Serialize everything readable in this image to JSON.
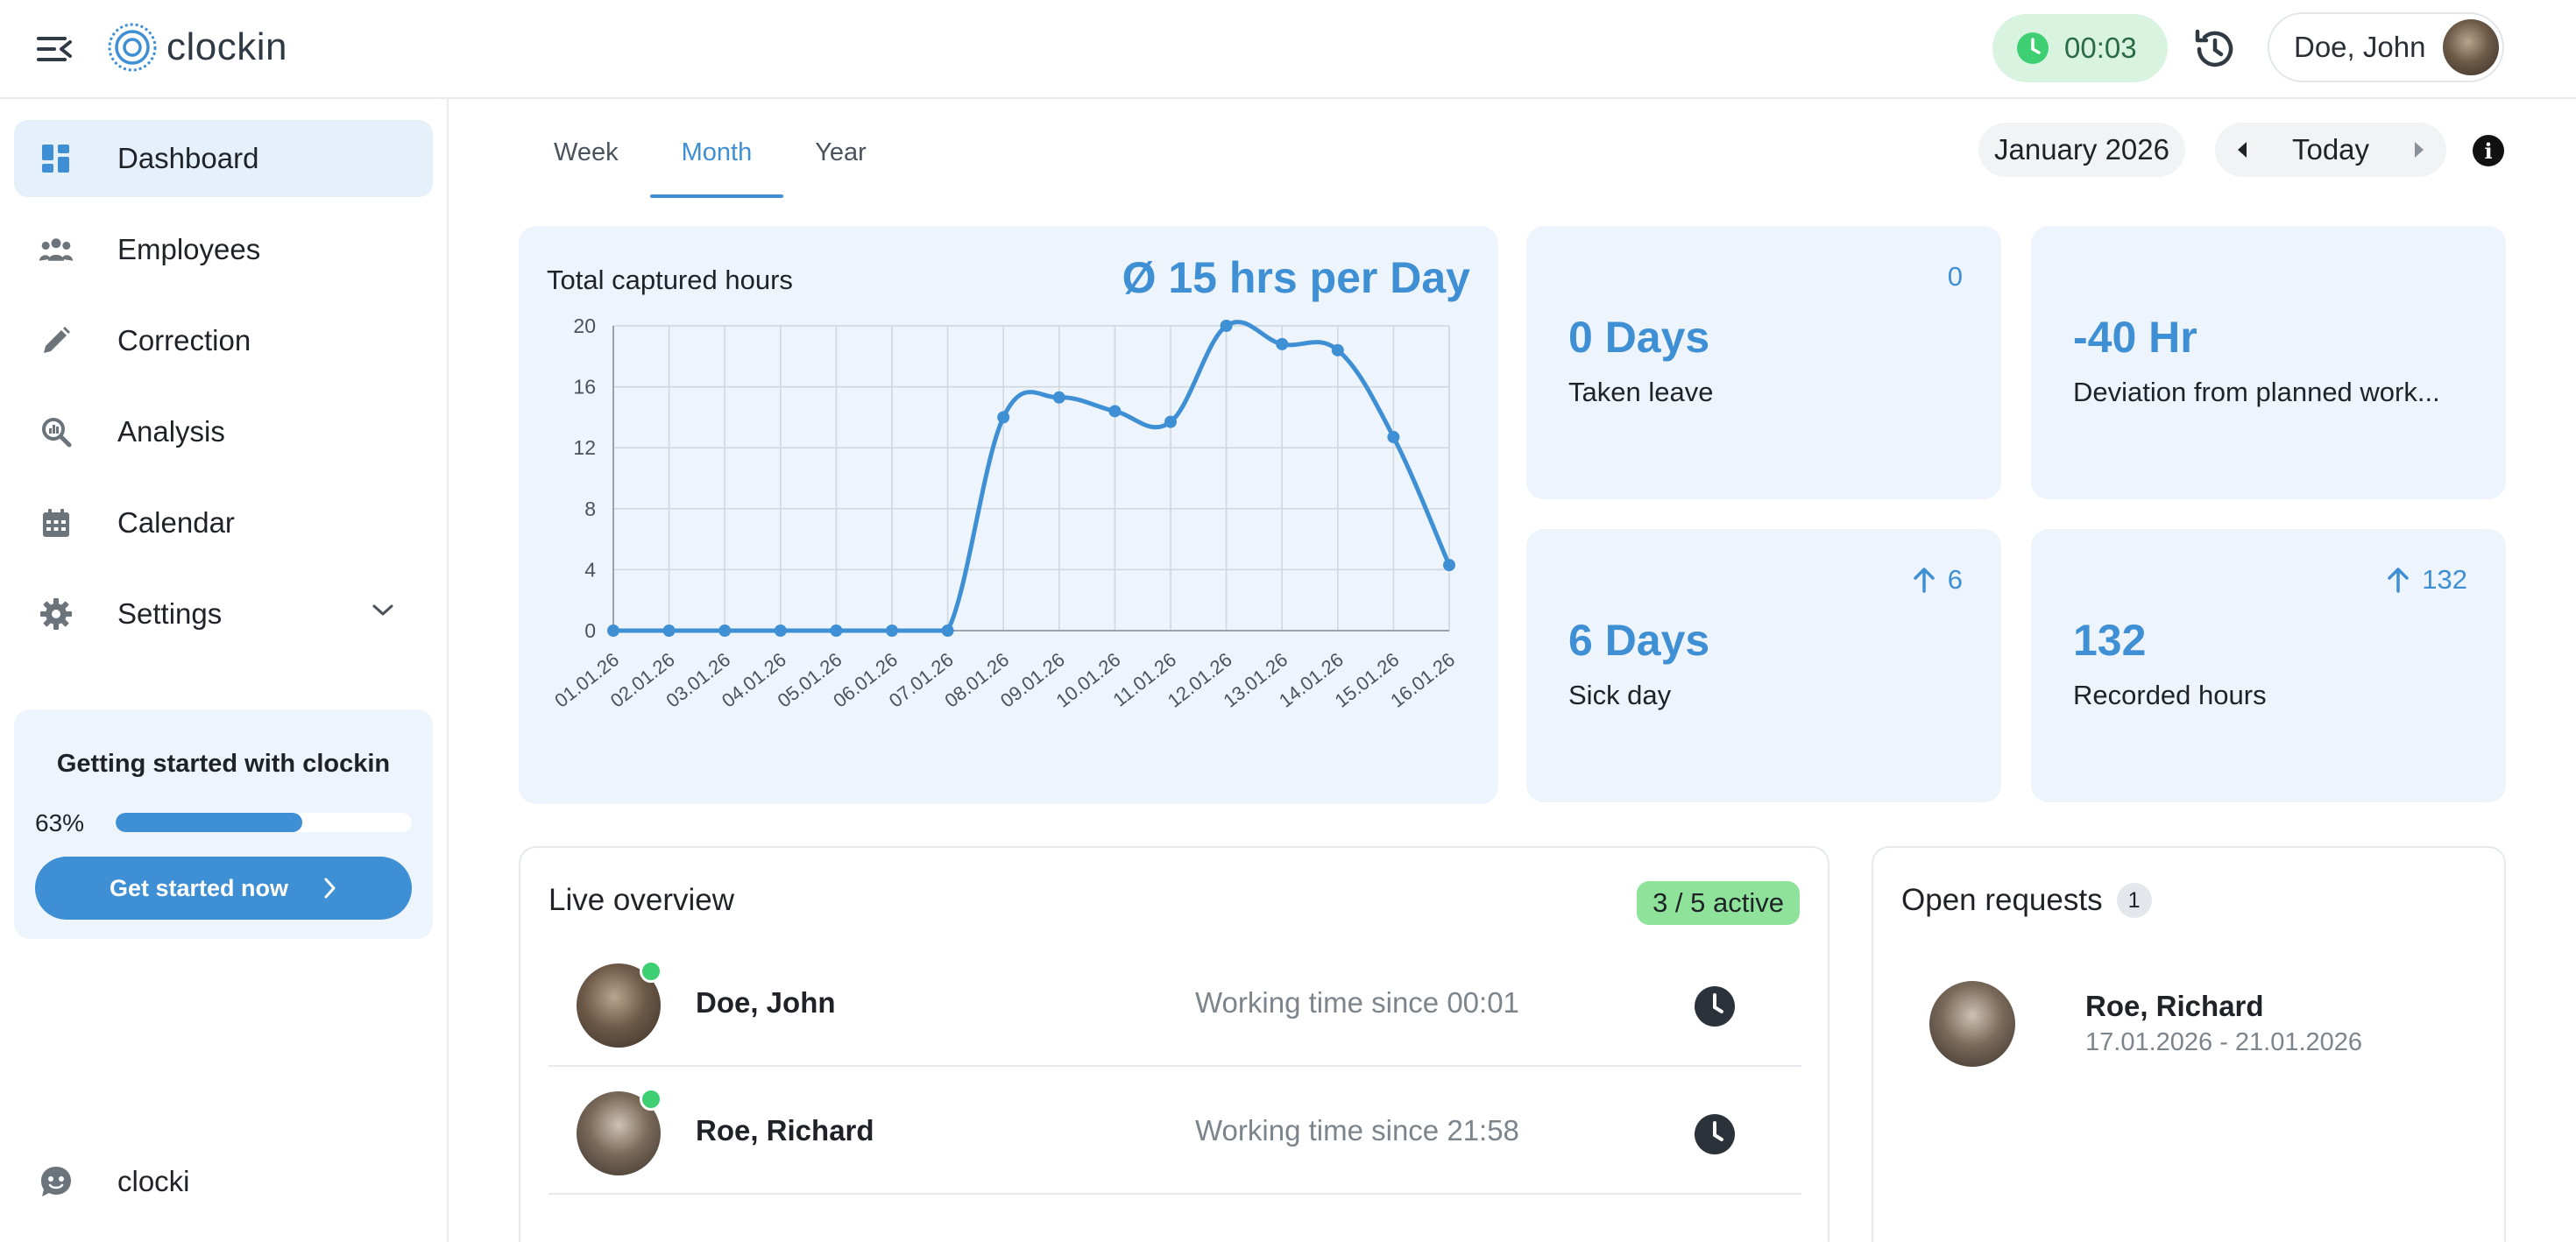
{
  "header": {
    "logo_text": "clockin",
    "timer": "00:03",
    "user_name": "Doe, John"
  },
  "sidebar": {
    "items": [
      {
        "label": "Dashboard",
        "icon": "dashboard-icon",
        "active": true
      },
      {
        "label": "Employees",
        "icon": "users-icon"
      },
      {
        "label": "Correction",
        "icon": "pencil-icon"
      },
      {
        "label": "Analysis",
        "icon": "analysis-icon"
      },
      {
        "label": "Calendar",
        "icon": "calendar-icon"
      },
      {
        "label": "Settings",
        "icon": "gear-icon"
      }
    ],
    "onboarding": {
      "title": "Getting started with clockin",
      "percent_label": "63%",
      "progress": 0.63,
      "button_label": "Get started now"
    },
    "assistant_label": "clocki"
  },
  "tabs": [
    {
      "label": "Week"
    },
    {
      "label": "Month",
      "active": true
    },
    {
      "label": "Year"
    }
  ],
  "period": {
    "month_label": "January 2026",
    "today_label": "Today"
  },
  "chart_card": {
    "title": "Total captured hours",
    "average": "Ø 15 hrs per Day"
  },
  "chart_data": {
    "type": "line",
    "title": "Total captured hours",
    "categories": [
      "01.01.26",
      "02.01.26",
      "03.01.26",
      "04.01.26",
      "05.01.26",
      "06.01.26",
      "07.01.26",
      "08.01.26",
      "09.01.26",
      "10.01.26",
      "11.01.26",
      "12.01.26",
      "13.01.26",
      "14.01.26",
      "15.01.26",
      "16.01.26"
    ],
    "values": [
      0,
      0,
      0,
      0,
      0,
      0,
      0,
      14,
      15.3,
      14.4,
      13.7,
      20,
      18.8,
      18.4,
      12.7,
      4.3
    ],
    "yticks": [
      0,
      4,
      8,
      12,
      16,
      20
    ],
    "ylim": [
      0,
      20
    ],
    "grid": true,
    "color": "#3e8fd4"
  },
  "stats": {
    "taken_leave": {
      "value": "0 Days",
      "label": "Taken leave",
      "badge": "0"
    },
    "deviation": {
      "value": "-40 Hr",
      "label": "Deviation from planned work..."
    },
    "sick_day": {
      "value": "6 Days",
      "label": "Sick day",
      "badge": "6"
    },
    "recorded": {
      "value": "132",
      "label": "Recorded hours",
      "badge": "132"
    }
  },
  "live_overview": {
    "title": "Live overview",
    "active_badge": "3 / 5 active",
    "rows": [
      {
        "name": "Doe, John",
        "status": "Working time since 00:01"
      },
      {
        "name": "Roe, Richard",
        "status": "Working time since 21:58"
      }
    ]
  },
  "open_requests": {
    "title": "Open requests",
    "count": "1",
    "rows": [
      {
        "name": "Roe, Richard",
        "dates": "17.01.2026 - 21.01.2026"
      }
    ]
  }
}
